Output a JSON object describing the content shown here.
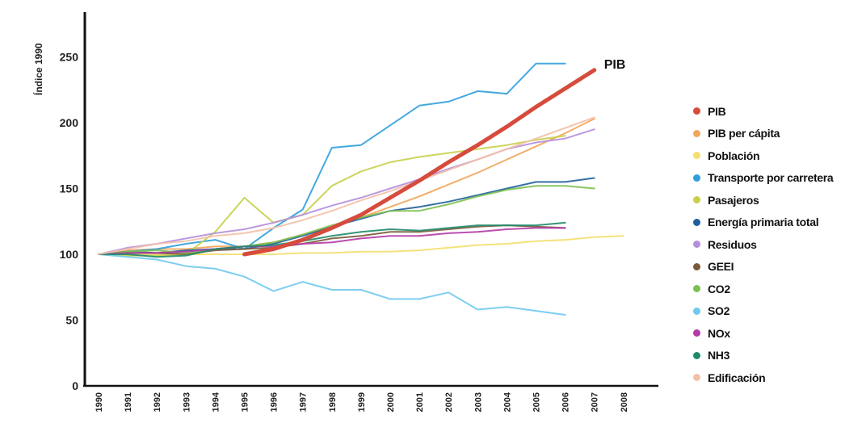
{
  "chart_data": {
    "type": "line",
    "ylabel": "Índice 1990",
    "ylim": [
      0,
      280
    ],
    "yticks": [
      0,
      50,
      100,
      150,
      200,
      250
    ],
    "x": [
      1990,
      1991,
      1992,
      1993,
      1994,
      1995,
      1996,
      1997,
      1998,
      1999,
      2000,
      2001,
      2002,
      2003,
      2004,
      2005,
      2006,
      2007,
      2008
    ],
    "xticklabels": [
      "1990",
      "1991",
      "1992",
      "1993",
      "1994",
      "1995",
      "1996",
      "1997",
      "1998",
      "1999",
      "2000",
      "2001",
      "2002",
      "2003",
      "2004",
      "2005",
      "2006",
      "2007",
      "2008"
    ],
    "annotation": "PIB",
    "grid": false,
    "legend_position": "right",
    "series": [
      {
        "name": "PIB",
        "color": "#d64b3c",
        "width": 5,
        "points": [
          [
            1995,
            100
          ],
          [
            1996,
            104
          ],
          [
            1997,
            111
          ],
          [
            1998,
            120
          ],
          [
            1999,
            130
          ],
          [
            2000,
            143
          ],
          [
            2001,
            156
          ],
          [
            2002,
            170
          ],
          [
            2003,
            183
          ],
          [
            2004,
            197
          ],
          [
            2005,
            212
          ],
          [
            2006,
            226
          ],
          [
            2007,
            240
          ]
        ]
      },
      {
        "name": "PIB per cápita",
        "color": "#f2a55a",
        "width": 2,
        "points": [
          [
            1990,
            100
          ],
          [
            1991,
            103
          ],
          [
            1992,
            104
          ],
          [
            1993,
            104
          ],
          [
            1994,
            106
          ],
          [
            1995,
            106
          ],
          [
            1996,
            109
          ],
          [
            1997,
            115
          ],
          [
            1998,
            121
          ],
          [
            1999,
            128
          ],
          [
            2000,
            136
          ],
          [
            2001,
            144
          ],
          [
            2002,
            153
          ],
          [
            2003,
            162
          ],
          [
            2004,
            172
          ],
          [
            2005,
            182
          ],
          [
            2006,
            192
          ],
          [
            2007,
            203
          ]
        ]
      },
      {
        "name": "Población",
        "color": "#f3df6e",
        "width": 2,
        "points": [
          [
            1990,
            100
          ],
          [
            1991,
            100
          ],
          [
            1992,
            100
          ],
          [
            1993,
            100
          ],
          [
            1994,
            100
          ],
          [
            1995,
            100
          ],
          [
            1996,
            100
          ],
          [
            1997,
            101
          ],
          [
            1998,
            101
          ],
          [
            1999,
            102
          ],
          [
            2000,
            102
          ],
          [
            2001,
            103
          ],
          [
            2002,
            105
          ],
          [
            2003,
            107
          ],
          [
            2004,
            108
          ],
          [
            2005,
            110
          ],
          [
            2006,
            111
          ],
          [
            2007,
            113
          ],
          [
            2008,
            114
          ]
        ]
      },
      {
        "name": "Transporte por carretera",
        "color": "#2f9fdc",
        "width": 2,
        "points": [
          [
            1990,
            100
          ],
          [
            1991,
            102
          ],
          [
            1992,
            104
          ],
          [
            1993,
            108
          ],
          [
            1994,
            111
          ],
          [
            1995,
            104
          ],
          [
            1996,
            120
          ],
          [
            1997,
            134
          ],
          [
            1998,
            181
          ],
          [
            1999,
            183
          ],
          [
            2000,
            198
          ],
          [
            2001,
            213
          ],
          [
            2002,
            216
          ],
          [
            2003,
            224
          ],
          [
            2004,
            222
          ],
          [
            2005,
            245
          ],
          [
            2006,
            245
          ]
        ]
      },
      {
        "name": "Pasajeros",
        "color": "#c7d04a",
        "width": 2,
        "points": [
          [
            1990,
            100
          ],
          [
            1991,
            99
          ],
          [
            1992,
            99
          ],
          [
            1993,
            100
          ],
          [
            1994,
            117
          ],
          [
            1995,
            143
          ],
          [
            1996,
            124
          ],
          [
            1997,
            130
          ],
          [
            1998,
            152
          ],
          [
            1999,
            163
          ],
          [
            2000,
            170
          ],
          [
            2001,
            174
          ],
          [
            2002,
            177
          ],
          [
            2003,
            180
          ],
          [
            2004,
            183
          ],
          [
            2005,
            187
          ],
          [
            2006,
            190
          ]
        ]
      },
      {
        "name": "Energía primaria total",
        "color": "#1f5f9c",
        "width": 2,
        "points": [
          [
            1990,
            100
          ],
          [
            1991,
            102
          ],
          [
            1992,
            101
          ],
          [
            1993,
            103
          ],
          [
            1994,
            104
          ],
          [
            1995,
            104
          ],
          [
            1996,
            108
          ],
          [
            1997,
            114
          ],
          [
            1998,
            121
          ],
          [
            1999,
            127
          ],
          [
            2000,
            133
          ],
          [
            2001,
            136
          ],
          [
            2002,
            140
          ],
          [
            2003,
            145
          ],
          [
            2004,
            150
          ],
          [
            2005,
            155
          ],
          [
            2006,
            155
          ],
          [
            2007,
            158
          ]
        ]
      },
      {
        "name": "Residuos",
        "color": "#b58fdc",
        "width": 2,
        "points": [
          [
            1990,
            100
          ],
          [
            1991,
            105
          ],
          [
            1992,
            108
          ],
          [
            1993,
            112
          ],
          [
            1994,
            116
          ],
          [
            1995,
            119
          ],
          [
            1996,
            124
          ],
          [
            1997,
            130
          ],
          [
            1998,
            137
          ],
          [
            1999,
            143
          ],
          [
            2000,
            150
          ],
          [
            2001,
            157
          ],
          [
            2002,
            165
          ],
          [
            2003,
            172
          ],
          [
            2004,
            180
          ],
          [
            2005,
            185
          ],
          [
            2006,
            188
          ],
          [
            2007,
            195
          ]
        ]
      },
      {
        "name": "GEEI",
        "color": "#7b5a3a",
        "width": 2,
        "points": [
          [
            1990,
            100
          ],
          [
            1991,
            101
          ],
          [
            1992,
            101
          ],
          [
            1993,
            100
          ],
          [
            1994,
            103
          ],
          [
            1995,
            104
          ],
          [
            1996,
            105
          ],
          [
            1997,
            108
          ],
          [
            1998,
            112
          ],
          [
            1999,
            114
          ],
          [
            2000,
            117
          ],
          [
            2001,
            117
          ],
          [
            2002,
            119
          ],
          [
            2003,
            121
          ],
          [
            2004,
            122
          ],
          [
            2005,
            121
          ],
          [
            2006,
            120
          ]
        ]
      },
      {
        "name": "CO2",
        "color": "#7cc04f",
        "width": 2,
        "points": [
          [
            1990,
            100
          ],
          [
            1991,
            102
          ],
          [
            1992,
            103
          ],
          [
            1993,
            101
          ],
          [
            1994,
            104
          ],
          [
            1995,
            106
          ],
          [
            1996,
            109
          ],
          [
            1997,
            115
          ],
          [
            1998,
            122
          ],
          [
            1999,
            128
          ],
          [
            2000,
            133
          ],
          [
            2001,
            133
          ],
          [
            2002,
            138
          ],
          [
            2003,
            144
          ],
          [
            2004,
            149
          ],
          [
            2005,
            152
          ],
          [
            2006,
            152
          ],
          [
            2007,
            150
          ]
        ]
      },
      {
        "name": "SO2",
        "color": "#6fc9ee",
        "width": 2,
        "points": [
          [
            1990,
            100
          ],
          [
            1991,
            98
          ],
          [
            1992,
            96
          ],
          [
            1993,
            91
          ],
          [
            1994,
            89
          ],
          [
            1995,
            83
          ],
          [
            1996,
            72
          ],
          [
            1997,
            79
          ],
          [
            1998,
            73
          ],
          [
            1999,
            73
          ],
          [
            2000,
            66
          ],
          [
            2001,
            66
          ],
          [
            2002,
            71
          ],
          [
            2003,
            58
          ],
          [
            2004,
            60
          ],
          [
            2005,
            57
          ],
          [
            2006,
            54
          ]
        ]
      },
      {
        "name": "NOx",
        "color": "#b43aa8",
        "width": 2,
        "points": [
          [
            1990,
            100
          ],
          [
            1991,
            101
          ],
          [
            1992,
            101
          ],
          [
            1993,
            102
          ],
          [
            1994,
            104
          ],
          [
            1995,
            106
          ],
          [
            1996,
            106
          ],
          [
            1997,
            108
          ],
          [
            1998,
            109
          ],
          [
            1999,
            112
          ],
          [
            2000,
            114
          ],
          [
            2001,
            114
          ],
          [
            2002,
            116
          ],
          [
            2003,
            117
          ],
          [
            2004,
            119
          ],
          [
            2005,
            120
          ],
          [
            2006,
            120
          ]
        ]
      },
      {
        "name": "NH3",
        "color": "#1f8a6a",
        "width": 2,
        "points": [
          [
            1990,
            100
          ],
          [
            1991,
            100
          ],
          [
            1992,
            98
          ],
          [
            1993,
            99
          ],
          [
            1994,
            104
          ],
          [
            1995,
            106
          ],
          [
            1996,
            107
          ],
          [
            1997,
            110
          ],
          [
            1998,
            114
          ],
          [
            1999,
            117
          ],
          [
            2000,
            119
          ],
          [
            2001,
            118
          ],
          [
            2002,
            120
          ],
          [
            2003,
            122
          ],
          [
            2004,
            122
          ],
          [
            2005,
            122
          ],
          [
            2006,
            124
          ]
        ]
      },
      {
        "name": "Edificación",
        "color": "#f3c0a6",
        "width": 2,
        "points": [
          [
            1990,
            100
          ],
          [
            1991,
            104
          ],
          [
            1992,
            108
          ],
          [
            1993,
            110
          ],
          [
            1994,
            114
          ],
          [
            1995,
            116
          ],
          [
            1996,
            120
          ],
          [
            1997,
            126
          ],
          [
            1998,
            133
          ],
          [
            1999,
            141
          ],
          [
            2000,
            148
          ],
          [
            2001,
            156
          ],
          [
            2002,
            164
          ],
          [
            2003,
            172
          ],
          [
            2004,
            180
          ],
          [
            2005,
            188
          ],
          [
            2006,
            196
          ],
          [
            2007,
            204
          ]
        ]
      }
    ]
  }
}
